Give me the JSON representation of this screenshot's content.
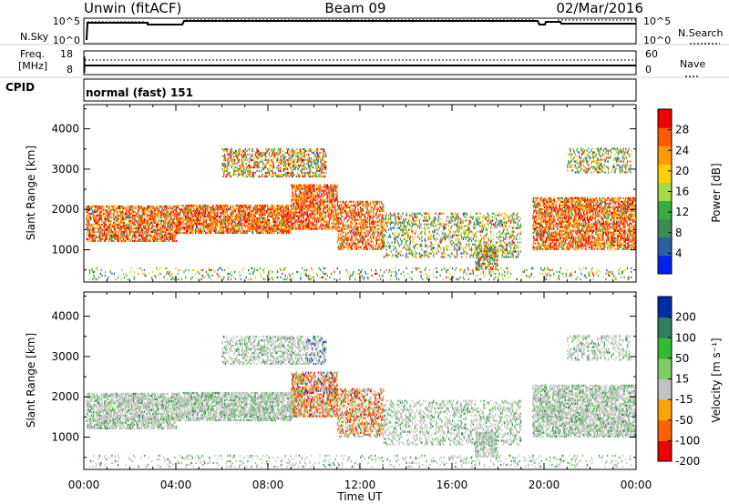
{
  "header": {
    "station": "Unwin (fitACF)",
    "beam": "Beam 09",
    "date": "02/Mar/2016"
  },
  "noise_panel": {
    "left_label": "N.Sky",
    "right_label": "N.Search",
    "ticks_left": [
      "10^5",
      "10^0"
    ],
    "ticks_right": [
      "10^5",
      "10^0"
    ]
  },
  "freq_panel": {
    "left_label_1": "Freq.",
    "left_label_2": "[MHz]",
    "right_label": "Nave",
    "ticks_left": [
      "18",
      "8"
    ],
    "ticks_right": [
      "60",
      "0"
    ]
  },
  "cpid_panel": {
    "label": "CPID",
    "mode": "normal (fast) 151"
  },
  "colors": {
    "power": [
      "#0022ee",
      "#2a5fa0",
      "#3c8c55",
      "#3aaa44",
      "#a8d94a",
      "#ffd000",
      "#ff9a00",
      "#ff5a00",
      "#ee0000"
    ],
    "velocity": [
      "#ee0000",
      "#ff6000",
      "#ffa200",
      "#c2c2c2",
      "#80cc66",
      "#33bb33",
      "#2f7f60",
      "#002ea8"
    ]
  },
  "chart_data": [
    {
      "type": "heatmap",
      "name": "power",
      "ylabel": "Slant Range [km]",
      "yticks": [
        1000,
        2000,
        3000,
        4000
      ],
      "ylim": [
        200,
        4600
      ],
      "xlim": [
        0,
        24
      ],
      "colorbar_label": "Power [dB]",
      "colorbar_ticks": [
        4,
        8,
        12,
        16,
        20,
        24,
        28
      ],
      "colorbar_range": [
        0,
        32
      ]
    },
    {
      "type": "heatmap",
      "name": "velocity",
      "ylabel": "Slant Range [km]",
      "yticks": [
        1000,
        2000,
        3000,
        4000
      ],
      "ylim": [
        200,
        4600
      ],
      "xlim": [
        0,
        24
      ],
      "xlabel": "Time UT",
      "xtick_labels": [
        "00:00",
        "04:00",
        "08:00",
        "12:00",
        "16:00",
        "20:00",
        "00:00"
      ],
      "xtick_values": [
        0,
        4,
        8,
        12,
        16,
        20,
        24
      ],
      "colorbar_label": "Velocity [m s⁻¹]",
      "colorbar_ticks": [
        200,
        100,
        50,
        15,
        -15,
        -50,
        -100,
        -200
      ]
    }
  ]
}
